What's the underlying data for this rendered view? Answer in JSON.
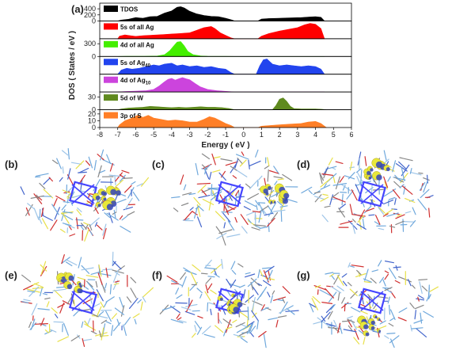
{
  "chart_data": {
    "type": "area",
    "panel_label": "(a)",
    "xlabel": "Energy ( eV )",
    "ylabel": "DOS ( States / eV )",
    "xlim": [
      -8,
      6
    ],
    "x_ticks": [
      "-8",
      "-7",
      "-6",
      "-5",
      "-4",
      "-3",
      "-2",
      "-1",
      "0",
      "1",
      "2",
      "3",
      "4",
      "5",
      "6"
    ],
    "series": [
      {
        "name": "TDOS",
        "color": "#000000",
        "yticks": [
          "0",
          "200",
          "400"
        ],
        "ymax": 560,
        "points": [
          [
            -7.0,
            0
          ],
          [
            -6.8,
            30
          ],
          [
            -6.4,
            55
          ],
          [
            -6.0,
            110
          ],
          [
            -5.6,
            90
          ],
          [
            -5.2,
            140
          ],
          [
            -4.8,
            150
          ],
          [
            -4.4,
            260
          ],
          [
            -4.0,
            330
          ],
          [
            -3.7,
            450
          ],
          [
            -3.5,
            470
          ],
          [
            -3.3,
            430
          ],
          [
            -3.0,
            320
          ],
          [
            -2.6,
            230
          ],
          [
            -2.2,
            180
          ],
          [
            -1.8,
            150
          ],
          [
            -1.4,
            140
          ],
          [
            -1.0,
            90
          ],
          [
            -0.7,
            40
          ],
          [
            -0.5,
            0
          ],
          [
            0.8,
            0
          ],
          [
            1.0,
            60
          ],
          [
            1.4,
            80
          ],
          [
            2.0,
            90
          ],
          [
            2.6,
            100
          ],
          [
            3.2,
            110
          ],
          [
            3.6,
            130
          ],
          [
            4.0,
            140
          ],
          [
            4.3,
            120
          ],
          [
            4.5,
            0
          ]
        ]
      },
      {
        "name": "5s of all Ag",
        "color": "#ff0000",
        "yticks": [],
        "ymax": 1,
        "points": [
          [
            -7.0,
            0
          ],
          [
            -6.9,
            0.15
          ],
          [
            -6.6,
            0.22
          ],
          [
            -6.3,
            0.18
          ],
          [
            -6.0,
            0.14
          ],
          [
            -5.6,
            0.18
          ],
          [
            -5.2,
            0.2
          ],
          [
            -4.8,
            0.22
          ],
          [
            -4.4,
            0.25
          ],
          [
            -4.0,
            0.28
          ],
          [
            -3.6,
            0.3
          ],
          [
            -3.0,
            0.35
          ],
          [
            -2.6,
            0.5
          ],
          [
            -2.2,
            0.65
          ],
          [
            -1.8,
            0.72
          ],
          [
            -1.6,
            0.6
          ],
          [
            -1.3,
            0.35
          ],
          [
            -1.0,
            0.2
          ],
          [
            -0.7,
            0.05
          ],
          [
            -0.5,
            0
          ],
          [
            0.8,
            0
          ],
          [
            1.0,
            0.15
          ],
          [
            1.4,
            0.3
          ],
          [
            2.0,
            0.45
          ],
          [
            2.5,
            0.55
          ],
          [
            3.0,
            0.65
          ],
          [
            3.4,
            0.82
          ],
          [
            3.7,
            0.9
          ],
          [
            4.0,
            0.85
          ],
          [
            4.3,
            0.6
          ],
          [
            4.5,
            0
          ]
        ]
      },
      {
        "name": "4d of all Ag",
        "color": "#44ee00",
        "yticks": [
          "0",
          "300"
        ],
        "ymax": 400,
        "points": [
          [
            -7.0,
            0
          ],
          [
            -6.5,
            3
          ],
          [
            -5.5,
            5
          ],
          [
            -4.8,
            10
          ],
          [
            -4.4,
            40
          ],
          [
            -4.1,
            140
          ],
          [
            -3.9,
            240
          ],
          [
            -3.7,
            340
          ],
          [
            -3.5,
            350
          ],
          [
            -3.3,
            250
          ],
          [
            -3.1,
            120
          ],
          [
            -2.8,
            40
          ],
          [
            -2.4,
            12
          ],
          [
            -2.0,
            5
          ],
          [
            -1.0,
            2
          ],
          [
            -0.5,
            0
          ],
          [
            4.5,
            0
          ]
        ]
      },
      {
        "name": "5s of Ag",
        "sub": "40",
        "color": "#2244ee",
        "yticks": [],
        "ymax": 1,
        "points": [
          [
            -7.0,
            0
          ],
          [
            -6.8,
            0.25
          ],
          [
            -6.5,
            0.35
          ],
          [
            -6.2,
            0.3
          ],
          [
            -5.8,
            0.35
          ],
          [
            -5.4,
            0.45
          ],
          [
            -5.0,
            0.55
          ],
          [
            -4.7,
            0.5
          ],
          [
            -4.4,
            0.6
          ],
          [
            -4.0,
            0.65
          ],
          [
            -3.7,
            0.5
          ],
          [
            -3.4,
            0.55
          ],
          [
            -3.0,
            0.45
          ],
          [
            -2.6,
            0.5
          ],
          [
            -2.2,
            0.4
          ],
          [
            -1.8,
            0.45
          ],
          [
            -1.4,
            0.35
          ],
          [
            -1.0,
            0.3
          ],
          [
            -0.7,
            0.1
          ],
          [
            -0.5,
            0
          ],
          [
            0.7,
            0
          ],
          [
            0.9,
            0.5
          ],
          [
            1.1,
            0.85
          ],
          [
            1.3,
            0.9
          ],
          [
            1.6,
            0.6
          ],
          [
            2.0,
            0.5
          ],
          [
            2.4,
            0.55
          ],
          [
            2.8,
            0.5
          ],
          [
            3.2,
            0.45
          ],
          [
            3.6,
            0.5
          ],
          [
            4.0,
            0.45
          ],
          [
            4.3,
            0.3
          ],
          [
            4.5,
            0
          ]
        ]
      },
      {
        "name": "4d of Ag",
        "sub": "10",
        "color": "#cc44dd",
        "yticks": [],
        "ymax": 1,
        "points": [
          [
            -7.0,
            0
          ],
          [
            -6.6,
            0.03
          ],
          [
            -6.0,
            0.05
          ],
          [
            -5.4,
            0.08
          ],
          [
            -5.0,
            0.15
          ],
          [
            -4.7,
            0.35
          ],
          [
            -4.4,
            0.6
          ],
          [
            -4.2,
            0.75
          ],
          [
            -4.0,
            0.8
          ],
          [
            -3.8,
            0.7
          ],
          [
            -3.6,
            0.78
          ],
          [
            -3.4,
            0.85
          ],
          [
            -3.2,
            0.78
          ],
          [
            -3.0,
            0.72
          ],
          [
            -2.7,
            0.5
          ],
          [
            -2.4,
            0.3
          ],
          [
            -2.0,
            0.15
          ],
          [
            -1.5,
            0.08
          ],
          [
            -1.0,
            0.04
          ],
          [
            -0.5,
            0
          ],
          [
            4.5,
            0
          ]
        ]
      },
      {
        "name": "5d of W",
        "color": "#5f8a1e",
        "yticks": [
          "0",
          "30"
        ],
        "ymax": 40,
        "points": [
          [
            -7.0,
            0
          ],
          [
            -6.8,
            2
          ],
          [
            -6.4,
            4
          ],
          [
            -6.0,
            5
          ],
          [
            -5.6,
            6
          ],
          [
            -5.2,
            8
          ],
          [
            -4.8,
            7
          ],
          [
            -4.4,
            6
          ],
          [
            -4.0,
            5
          ],
          [
            -3.6,
            6
          ],
          [
            -3.2,
            5
          ],
          [
            -2.8,
            6
          ],
          [
            -2.4,
            7
          ],
          [
            -2.0,
            6
          ],
          [
            -1.6,
            6
          ],
          [
            -1.2,
            5
          ],
          [
            -0.8,
            3
          ],
          [
            -0.5,
            0
          ],
          [
            1.6,
            0
          ],
          [
            1.8,
            10
          ],
          [
            2.0,
            25
          ],
          [
            2.2,
            28
          ],
          [
            2.4,
            20
          ],
          [
            2.6,
            8
          ],
          [
            2.8,
            3
          ],
          [
            3.2,
            2
          ],
          [
            3.6,
            2
          ],
          [
            4.0,
            2
          ],
          [
            4.4,
            1
          ],
          [
            4.6,
            0
          ]
        ]
      },
      {
        "name": "3p of S",
        "color": "#ff7f27",
        "yticks": [
          "0",
          "10",
          "20"
        ],
        "ymax": 25,
        "points": [
          [
            -7.0,
            0
          ],
          [
            -6.9,
            4
          ],
          [
            -6.6,
            10
          ],
          [
            -6.2,
            14
          ],
          [
            -5.9,
            18
          ],
          [
            -5.6,
            15
          ],
          [
            -5.3,
            18
          ],
          [
            -5.0,
            14
          ],
          [
            -4.6,
            12
          ],
          [
            -4.2,
            10
          ],
          [
            -3.8,
            11
          ],
          [
            -3.4,
            10
          ],
          [
            -3.0,
            8
          ],
          [
            -2.6,
            8
          ],
          [
            -2.2,
            12
          ],
          [
            -1.9,
            16
          ],
          [
            -1.6,
            14
          ],
          [
            -1.3,
            10
          ],
          [
            -1.0,
            6
          ],
          [
            -0.7,
            3
          ],
          [
            -0.5,
            0
          ],
          [
            0.8,
            0
          ],
          [
            1.0,
            2
          ],
          [
            1.5,
            3
          ],
          [
            2.0,
            4
          ],
          [
            2.6,
            5
          ],
          [
            3.2,
            6
          ],
          [
            3.6,
            8
          ],
          [
            4.0,
            9
          ],
          [
            4.3,
            6
          ],
          [
            4.6,
            0
          ]
        ]
      }
    ]
  },
  "structure_panels": [
    {
      "label": "(b)",
      "colored_atom_side": "center-right"
    },
    {
      "label": "(c)",
      "colored_atom_side": "right"
    },
    {
      "label": "(d)",
      "colored_atom_side": "top"
    },
    {
      "label": "(e)",
      "colored_atom_side": "top-left"
    },
    {
      "label": "(f)",
      "colored_atom_side": "center"
    },
    {
      "label": "(g)",
      "colored_atom_side": "bottom"
    }
  ],
  "colors": {
    "axis": "#000000",
    "isosurface": "#e8e83a",
    "isosurface_dark": "#3344bb",
    "core": "#4444ff"
  }
}
